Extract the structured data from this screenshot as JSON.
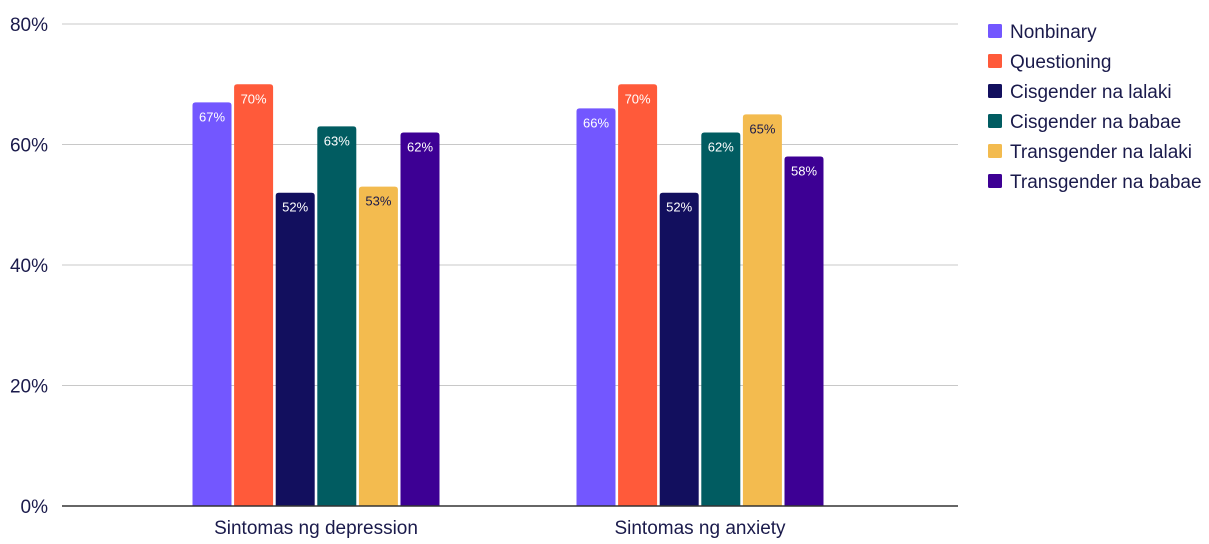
{
  "chart_data": {
    "type": "bar",
    "categories": [
      "Sintomas ng depression",
      "Sintomas ng anxiety"
    ],
    "series": [
      {
        "name": "Nonbinary",
        "color": "#7357ff",
        "label_color": "#ffffff",
        "values": [
          67,
          66
        ],
        "labels": [
          "67%",
          "66%"
        ]
      },
      {
        "name": "Questioning",
        "color": "#ff5a3a",
        "label_color": "#ffffff",
        "values": [
          70,
          70
        ],
        "labels": [
          "70%",
          "70%"
        ]
      },
      {
        "name": "Cisgender na lalaki",
        "color": "#120f5e",
        "label_color": "#ffffff",
        "values": [
          52,
          52
        ],
        "labels": [
          "52%",
          "52%"
        ]
      },
      {
        "name": "Cisgender na babae",
        "color": "#015c61",
        "label_color": "#ffffff",
        "values": [
          63,
          62
        ],
        "labels": [
          "63%",
          "62%"
        ]
      },
      {
        "name": "Transgender na lalaki",
        "color": "#f3bb4f",
        "label_color": "#1a1a4b",
        "values": [
          53,
          65
        ],
        "labels": [
          "53%",
          "65%"
        ]
      },
      {
        "name": "Transgender na babae",
        "color": "#3d0094",
        "label_color": "#ffffff",
        "values": [
          62,
          58
        ],
        "labels": [
          "62%",
          "58%"
        ]
      }
    ],
    "y_ticks": [
      {
        "value": 0,
        "label": "0%"
      },
      {
        "value": 20,
        "label": "20%"
      },
      {
        "value": 40,
        "label": "40%"
      },
      {
        "value": 60,
        "label": "60%"
      },
      {
        "value": 80,
        "label": "80%"
      }
    ],
    "ylim": [
      0,
      80
    ],
    "grid": true,
    "legend_position": "right"
  }
}
